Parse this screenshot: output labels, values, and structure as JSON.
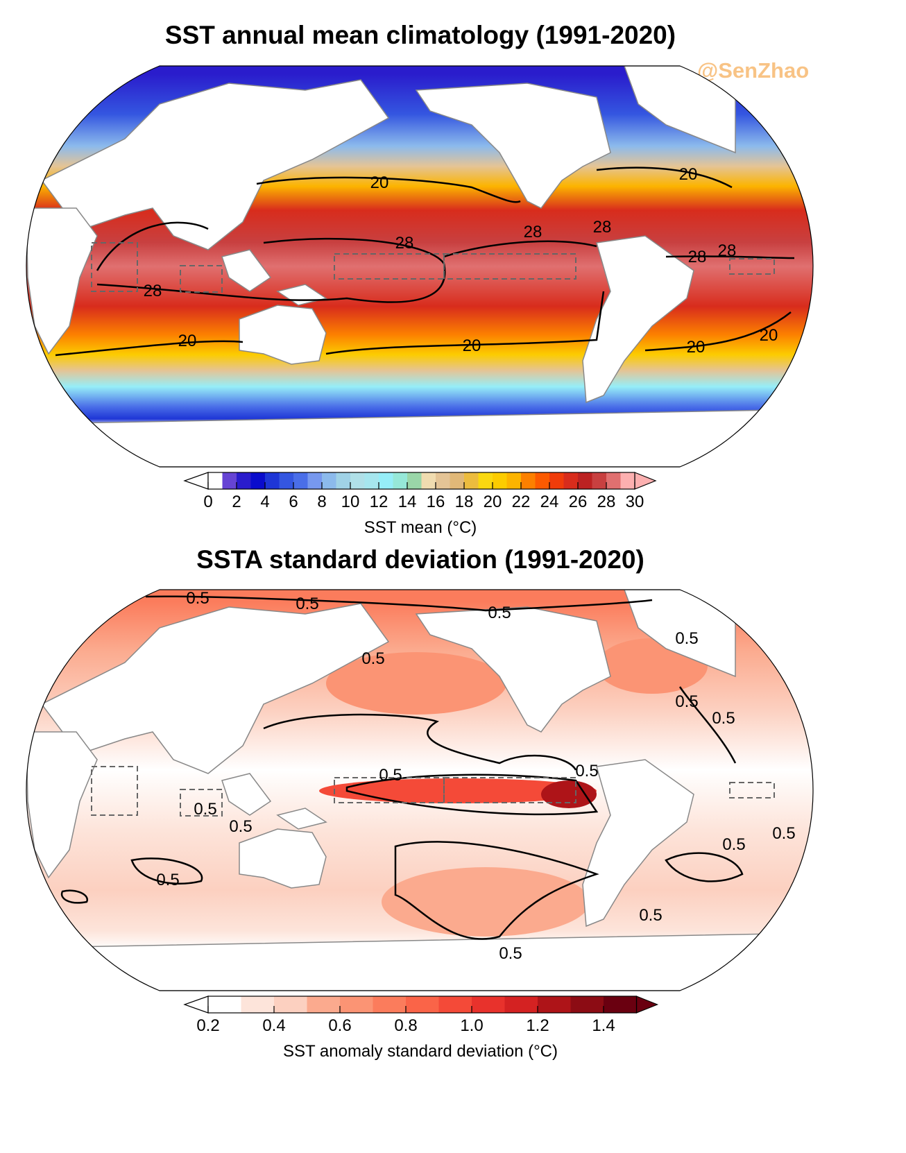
{
  "watermark": "@SenZhao",
  "panels": [
    {
      "title": "SST annual mean climatology (1991-2020)",
      "colorbar_label": "SST mean (°C)",
      "colorbar": {
        "levels_min": 0,
        "levels_max": 30,
        "step": 1,
        "tick_labels": [
          "0",
          "2",
          "4",
          "6",
          "8",
          "10",
          "12",
          "14",
          "16",
          "18",
          "20",
          "22",
          "24",
          "26",
          "28",
          "30"
        ],
        "colors": [
          "#ffffff",
          "#6644d4",
          "#2a1ccc",
          "#0a0ccc",
          "#1e36d6",
          "#3456e0",
          "#4a6ee8",
          "#7798ee",
          "#8cbaec",
          "#a0d2e6",
          "#b0e0e8",
          "#a6e6ee",
          "#96eef8",
          "#96e8d8",
          "#9ad6a8",
          "#f0dcb0",
          "#e4c496",
          "#e0b878",
          "#ecbc3e",
          "#fad810",
          "#fccc00",
          "#fcb400",
          "#fc8000",
          "#fc5a00",
          "#f03c0a",
          "#d82c1c",
          "#bc2222",
          "#c84040",
          "#e07070",
          "#fcb0b0"
        ],
        "under_color": "#ffffff",
        "over_color": "#fcb0b0"
      },
      "contour_levels": [
        "20",
        "28"
      ],
      "contour_labels": [
        "20",
        "20",
        "20",
        "20",
        "20",
        "20",
        "28",
        "28",
        "28",
        "28",
        "28",
        "28"
      ]
    },
    {
      "title": "SSTA standard deviation (1991-2020)",
      "colorbar_label": "SST anomaly standard deviation (°C)",
      "colorbar": {
        "levels_min": 0.2,
        "levels_max": 1.5,
        "step": 0.1,
        "tick_labels": [
          "0.2",
          "0.4",
          "0.6",
          "0.8",
          "1.0",
          "1.2",
          "1.4"
        ],
        "colors": [
          "#ffffff",
          "#fde4da",
          "#fcd0c0",
          "#fbaa8e",
          "#fb9474",
          "#fb7c5c",
          "#fa6448",
          "#f44a38",
          "#e8322c",
          "#d42222",
          "#ae1418",
          "#8c0c14",
          "#6a0010"
        ],
        "under_color": "#ffffff",
        "over_color": "#6a0010"
      },
      "contour_levels": [
        "0.5"
      ],
      "contour_labels": [
        "0.5",
        "0.5",
        "0.5",
        "0.5",
        "0.5",
        "0.5",
        "0.5",
        "0.5",
        "0.5",
        "0.5",
        "0.5",
        "0.5",
        "0.5",
        "0.5",
        "0.5",
        "0.5"
      ]
    }
  ]
}
